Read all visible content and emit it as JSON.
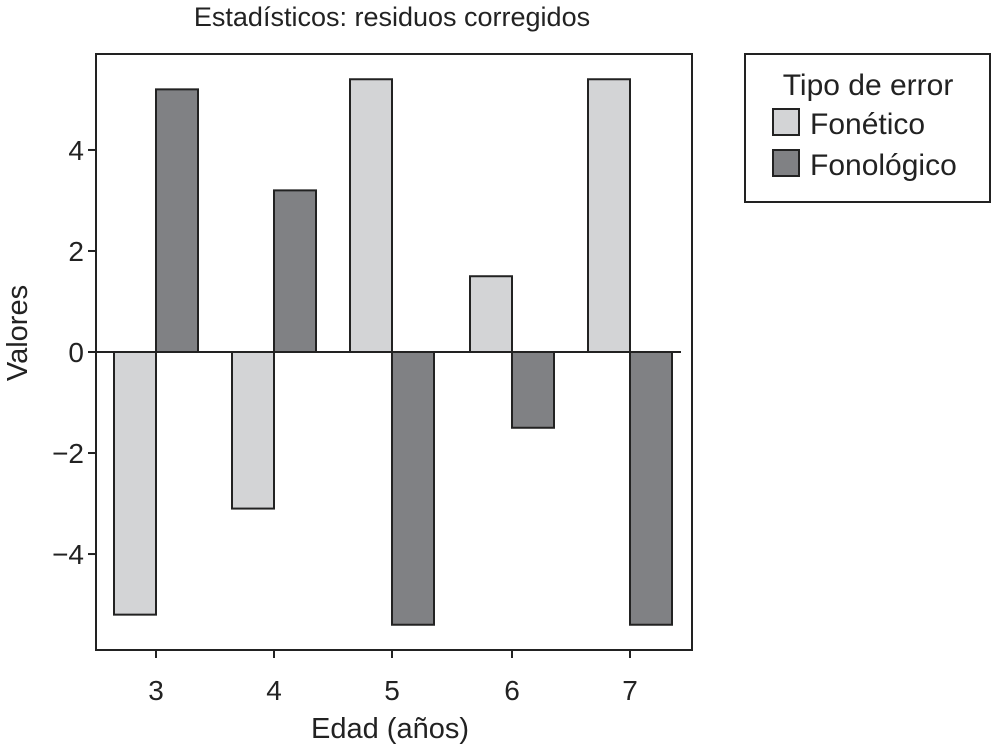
{
  "chart_data": {
    "type": "bar",
    "title": "Estadísticos: residuos corregidos",
    "xlabel": "Edad (años)",
    "ylabel": "Valores",
    "categories": [
      "3",
      "4",
      "5",
      "6",
      "7"
    ],
    "series": [
      {
        "name": "Fonético",
        "color": "#d3d4d6",
        "values": [
          -5.2,
          -3.1,
          5.4,
          1.5,
          5.4
        ]
      },
      {
        "name": "Fonológico",
        "color": "#808184",
        "values": [
          5.2,
          3.2,
          -5.4,
          -1.5,
          -5.4
        ]
      }
    ],
    "yticks": [
      4,
      2,
      0,
      -2,
      -4
    ],
    "ytick_labels": [
      "4",
      "2",
      "0",
      "−2",
      "−4"
    ],
    "ylim": [
      -5.9,
      5.9
    ],
    "legend": {
      "title": "Tipo de error",
      "position": "right"
    },
    "grid": false
  }
}
